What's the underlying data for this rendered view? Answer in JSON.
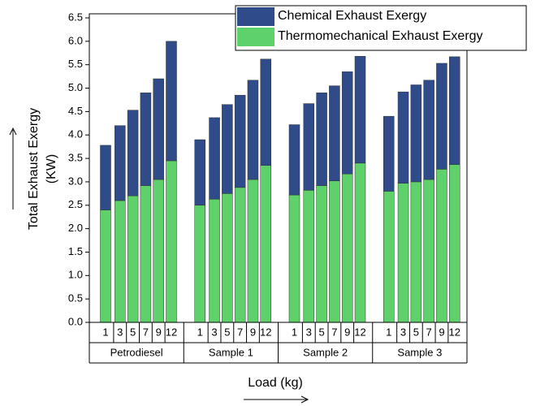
{
  "chart_data": {
    "type": "stacked_bar",
    "ylabel": [
      "Total Exhaust Exergy",
      "(KW)"
    ],
    "xlabel": "Load (kg)",
    "groups": [
      "Petrodiesel",
      "Sample 1",
      "Sample 2",
      "Sample 3"
    ],
    "categories": [
      "1",
      "3",
      "5",
      "7",
      "9",
      "12",
      "1",
      "3",
      "5",
      "7",
      "9",
      "12",
      "1",
      "3",
      "5",
      "7",
      "9",
      "12",
      "1",
      "3",
      "5",
      "7",
      "9",
      "12"
    ],
    "series": [
      {
        "name": "Thermomechanical Exhaust Exergy",
        "color": "#5fd16a",
        "values": [
          2.4,
          2.6,
          2.7,
          2.92,
          3.05,
          3.45,
          2.5,
          2.63,
          2.75,
          2.88,
          3.05,
          3.35,
          2.72,
          2.82,
          2.92,
          3.02,
          3.17,
          3.4,
          2.8,
          2.97,
          3.0,
          3.05,
          3.27,
          3.37
        ]
      },
      {
        "name": "Chemical Exhaust Exergy",
        "color": "#2f4b8a",
        "values": [
          1.38,
          1.6,
          1.83,
          1.98,
          2.15,
          2.55,
          1.4,
          1.74,
          1.9,
          1.97,
          2.12,
          2.27,
          1.5,
          1.85,
          1.98,
          2.03,
          2.18,
          2.28,
          1.6,
          1.95,
          2.07,
          2.12,
          2.26,
          2.3
        ]
      }
    ],
    "ylim": [
      0,
      6.5
    ],
    "yticks": [
      {
        "value": 0,
        "label": "0.0"
      },
      0.5,
      {
        "value": 1,
        "label": "1.0"
      },
      1.5,
      {
        "value": 2,
        "label": "2.0"
      },
      2.5,
      {
        "value": 3,
        "label": "3.0"
      },
      3.5,
      {
        "value": 4,
        "label": "4.0"
      },
      4.5,
      {
        "value": 5,
        "label": "5.0"
      },
      5.5,
      {
        "value": 6,
        "label": "6.0"
      },
      6.5
    ],
    "legend": "upper right"
  }
}
